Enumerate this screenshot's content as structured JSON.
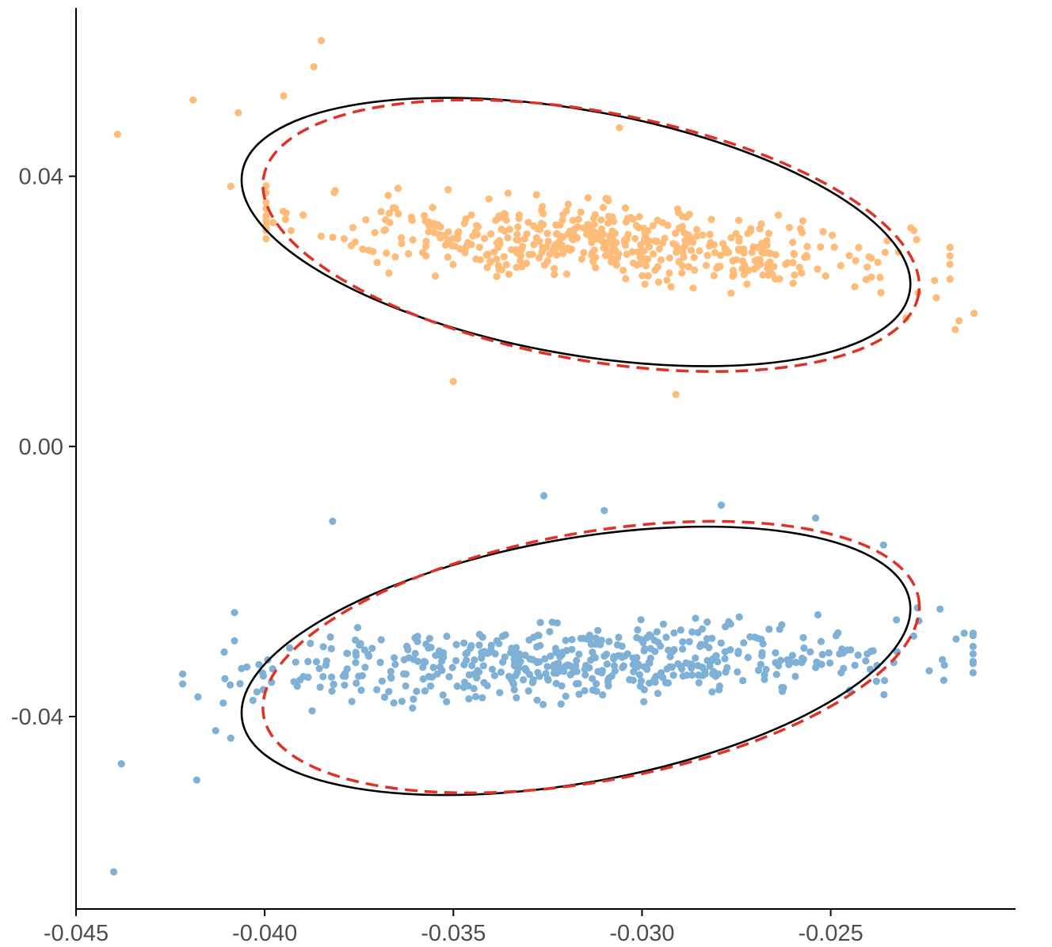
{
  "chart_data": {
    "type": "scatter",
    "title": "",
    "xlabel": "",
    "ylabel": "",
    "xlim": [
      -0.045,
      -0.0201
    ],
    "ylim": [
      -0.0685,
      0.0661
    ],
    "x_ticks": [
      -0.045,
      -0.04,
      -0.035,
      -0.03,
      -0.025
    ],
    "x_tick_labels": [
      "-0.045",
      "-0.040",
      "-0.035",
      "-0.030",
      "-0.025"
    ],
    "y_ticks": [
      0.04,
      0.0,
      -0.04
    ],
    "y_tick_labels": [
      "0.04",
      "0.00",
      "-0.04"
    ],
    "grid": false,
    "legend": "none",
    "colors": {
      "upper_points": "#ffbb78",
      "lower_points": "#7fb0d6",
      "solid_ellipse": "#000000",
      "dashed_ellipse": "#e03224",
      "axis": "#000000"
    },
    "series": [
      {
        "group": "upper",
        "color": "#ffbb78",
        "cluster": {
          "center": [
            -0.0309,
            0.0302
          ],
          "sd_along": 0.0038,
          "sd_across": 0.0051,
          "angle_deg": -19.5,
          "count": 520
        },
        "outliers": [
          [
            -0.0439,
            0.0462
          ],
          [
            -0.0419,
            0.0513
          ],
          [
            -0.0407,
            0.0494
          ],
          [
            -0.0395,
            0.0519
          ],
          [
            -0.0387,
            0.0562
          ],
          [
            -0.0385,
            0.0601
          ],
          [
            -0.0409,
            0.0385
          ],
          [
            -0.0374,
            0.0292
          ],
          [
            -0.035,
            0.0096
          ],
          [
            -0.023,
            0.019
          ],
          [
            -0.0222,
            0.022
          ],
          [
            -0.0216,
            0.0186
          ],
          [
            -0.0212,
            0.0197
          ],
          [
            -0.0217,
            0.0173
          ],
          [
            -0.0291,
            0.0077
          ],
          [
            -0.0306,
            0.0472
          ]
        ]
      },
      {
        "group": "lower",
        "color": "#7fb0d6",
        "cluster": {
          "center": [
            -0.0317,
            -0.032
          ],
          "sd_along": 0.0042,
          "sd_across": 0.0048,
          "angle_deg": 9.7,
          "count": 520
        },
        "outliers": [
          [
            -0.044,
            -0.063
          ],
          [
            -0.0438,
            -0.047
          ],
          [
            -0.0418,
            -0.0494
          ],
          [
            -0.0413,
            -0.0421
          ],
          [
            -0.0411,
            -0.038
          ],
          [
            -0.0409,
            -0.0432
          ],
          [
            -0.0408,
            -0.0288
          ],
          [
            -0.0408,
            -0.0246
          ],
          [
            -0.0382,
            -0.0111
          ],
          [
            -0.0326,
            -0.0073
          ],
          [
            -0.031,
            -0.0095
          ],
          [
            -0.0279,
            -0.0087
          ],
          [
            -0.0254,
            -0.0106
          ],
          [
            -0.0236,
            -0.0146
          ],
          [
            -0.0227,
            -0.0239
          ],
          [
            -0.0221,
            -0.0241
          ],
          [
            -0.0228,
            -0.0281
          ]
        ]
      }
    ],
    "ellipses": [
      {
        "group": "upper",
        "style": "solid",
        "center": [
          -0.03175,
          0.03175
        ],
        "semi_axes": [
          0.00875,
          0.0131
        ],
        "angle_deg": -19.5
      },
      {
        "group": "upper",
        "style": "dashed",
        "center": [
          -0.03135,
          0.0312
        ],
        "semi_axes": [
          0.00875,
          0.0131
        ],
        "angle_deg": -19.5
      },
      {
        "group": "lower",
        "style": "solid",
        "center": [
          -0.03175,
          -0.03175
        ],
        "semi_axes": [
          0.00875,
          0.0131
        ],
        "angle_deg": 19.5
      },
      {
        "group": "lower",
        "style": "dashed",
        "center": [
          -0.03135,
          -0.0312
        ],
        "semi_axes": [
          0.00875,
          0.0131
        ],
        "angle_deg": 19.5
      }
    ]
  }
}
